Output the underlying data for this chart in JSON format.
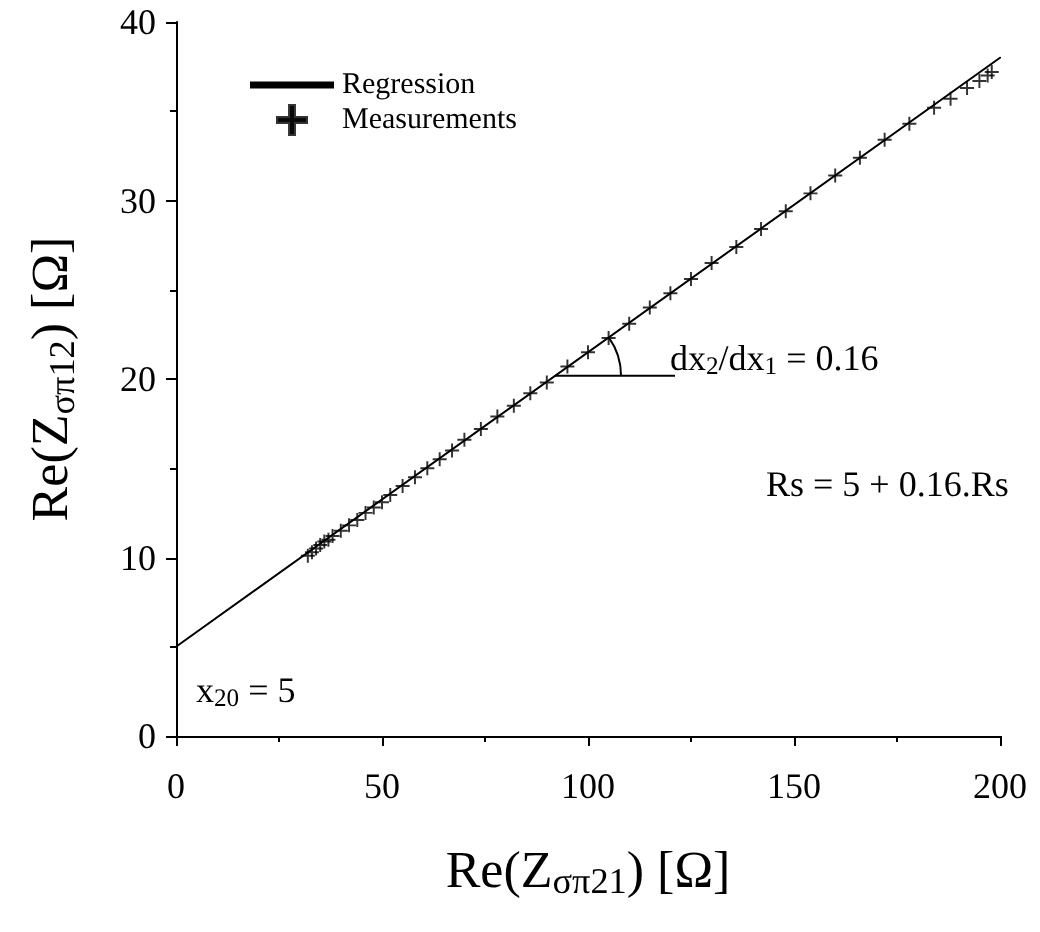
{
  "chart_data": {
    "type": "scatter",
    "xlabel": "Re(Z$_{σπ21}$) [Ω]",
    "ylabel": "Re(Z$_{σπ12}$) [Ω]",
    "xlim": [
      0,
      200
    ],
    "xticks": [
      0,
      50,
      100,
      150,
      200
    ],
    "ylim": [
      0,
      40
    ],
    "yticks": [
      0,
      10,
      20,
      30,
      40
    ],
    "grid": false,
    "legend": "top left",
    "series": [
      {
        "name": "Regression",
        "type": "line",
        "marker": "none",
        "line_style": "solid",
        "color": "#000000",
        "x": [
          0,
          200
        ],
        "values": [
          5,
          38
        ]
      },
      {
        "name": "Measurements",
        "marker": "cross",
        "color": "#000000",
        "x": [
          32,
          33,
          34,
          35,
          36,
          37,
          38,
          40,
          42,
          44,
          46,
          48,
          50,
          52,
          55,
          58,
          61,
          64,
          67,
          70,
          74,
          78,
          82,
          86,
          90,
          95,
          100,
          105,
          110,
          115,
          120,
          125,
          130,
          136,
          142,
          148,
          154,
          160,
          166,
          172,
          178,
          184,
          188,
          192,
          195,
          197,
          198
        ],
        "values": [
          10.1,
          10.3,
          10.5,
          10.7,
          10.9,
          11.0,
          11.2,
          11.5,
          11.8,
          12.1,
          12.5,
          12.8,
          13.1,
          13.5,
          14.0,
          14.5,
          15.0,
          15.5,
          16.0,
          16.6,
          17.2,
          17.9,
          18.5,
          19.2,
          19.8,
          20.7,
          21.5,
          22.3,
          23.1,
          24.0,
          24.8,
          25.6,
          26.5,
          27.4,
          28.4,
          29.4,
          30.4,
          31.4,
          32.4,
          33.4,
          34.3,
          35.2,
          35.7,
          36.3,
          36.7,
          37.0,
          37.2
        ]
      }
    ],
    "annotations": [
      "dx$_{2}$/dx$_{1}$ = 0.16",
      "Rs = 5 + 0.16.Rs",
      "x$_{20}$ = 5"
    ]
  }
}
